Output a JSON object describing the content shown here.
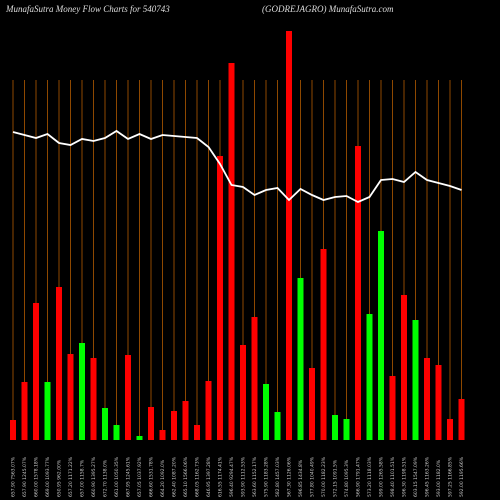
{
  "chart_data": {
    "type": "bar",
    "title": "MunafaSutra  Money Flow  Charts for 540743",
    "subtitle": "(GODREJAGRO) MunafaSutra.com",
    "categories": [
      "657.90 7563.07%",
      "657.90 1245.07%",
      "660.00 1578.18%",
      "669.00 1093.77%",
      "650.95 962.00%",
      "657.20 1171.22%",
      "657.00 1158.7%",
      "660.90 1395.27%",
      "672.70 1138.0%",
      "661.00 1050.35%",
      "667.95 1245.61%",
      "657.05 1037.92%",
      "666.60 1531.78%",
      "664.20 1092.0%",
      "662.40 1087.20%",
      "665.10 1566.06%",
      "668.05 1162.73%",
      "646.95 1397.28%",
      "616.55 1174.41%",
      "596.40 9294.47%",
      "593.90 1112.53%",
      "563.60 1152.17%",
      "575.90 1183.28%",
      "582.80 1457.03%",
      "567.30 1126.06%",
      "596.85 1434.8%",
      "577.80 1040.49%",
      "570.00 1182.23%",
      "572.15 1091.5%",
      "574.80 1095.3%",
      "566.90 1791.47%",
      "573.20 1118.03%",
      "599.00 1265.58%",
      "598.40 1101.51%",
      "596.30 1198.51%",
      "603.15 1547.09%",
      "596.45 1163.26%",
      "593.00 1182.0%",
      "597.25 1166.85%",
      "592.00 1195.66%"
    ],
    "values": [
      20,
      58,
      137,
      58,
      153,
      86,
      97,
      82,
      32,
      15,
      85,
      4,
      33,
      10,
      29,
      39,
      15,
      59,
      284,
      377,
      95,
      123,
      56,
      28,
      409,
      162,
      72,
      191,
      25,
      21,
      294,
      126,
      209,
      64,
      145,
      120,
      82,
      75,
      21,
      41
    ],
    "colors": [
      "#ff0000",
      "#ff0000",
      "#ff0000",
      "#00ff00",
      "#ff0000",
      "#ff0000",
      "#00ff00",
      "#ff0000",
      "#00ff00",
      "#00ff00",
      "#ff0000",
      "#00ff00",
      "#ff0000",
      "#ff0000",
      "#ff0000",
      "#ff0000",
      "#ff0000",
      "#ff0000",
      "#ff0000",
      "#ff0000",
      "#ff0000",
      "#ff0000",
      "#00ff00",
      "#00ff00",
      "#ff0000",
      "#00ff00",
      "#ff0000",
      "#ff0000",
      "#00ff00",
      "#00ff00",
      "#ff0000",
      "#00ff00",
      "#00ff00",
      "#ff0000",
      "#ff0000",
      "#00ff00",
      "#ff0000",
      "#ff0000",
      "#ff0000",
      "#ff0000"
    ],
    "line_values": [
      308,
      305,
      302,
      306,
      297,
      295,
      301,
      299,
      302,
      309,
      301,
      306,
      301,
      305,
      304,
      303,
      302,
      293,
      276,
      255,
      253,
      245,
      250,
      252,
      240,
      251,
      245,
      240,
      243,
      244,
      238,
      243,
      260,
      261,
      258,
      268,
      260,
      257,
      254,
      250
    ],
    "line_color": "#ffffff",
    "grid_color": "#b35a00"
  }
}
